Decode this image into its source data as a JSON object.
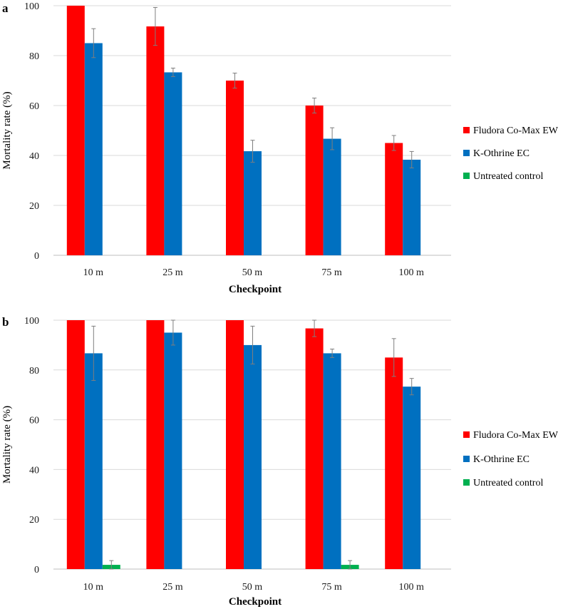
{
  "chart_data": [
    {
      "type": "bar",
      "panel_label": "a",
      "title": "",
      "xlabel": "Checkpoint",
      "ylabel": "Mortality rate (%)",
      "ylim": [
        0,
        100
      ],
      "yticks": [
        "0",
        "20",
        "40",
        "60",
        "80",
        "100"
      ],
      "categories": [
        "10 m",
        "25 m",
        "50 m",
        "75 m",
        "100 m"
      ],
      "legend_position": "right",
      "series": [
        {
          "name": "Fludora Co-Max EW",
          "color": "#ff0000",
          "values": [
            100,
            91.7,
            70,
            60,
            45
          ],
          "errors": [
            0,
            7.6,
            3,
            3,
            3
          ]
        },
        {
          "name": "K-Othrine EC",
          "color": "#0070c0",
          "values": [
            85,
            73.3,
            41.7,
            46.7,
            38.3
          ],
          "errors": [
            5.8,
            1.7,
            4.4,
            4.4,
            3.3
          ]
        },
        {
          "name": "Untreated control",
          "color": "#00b050",
          "values": [
            0,
            0,
            0,
            0,
            0
          ],
          "errors": [
            0,
            0,
            0,
            0,
            0
          ]
        }
      ]
    },
    {
      "type": "bar",
      "panel_label": "b",
      "title": "",
      "xlabel": "Checkpoint",
      "ylabel": "Mortality rate (%)",
      "ylim": [
        0,
        100
      ],
      "yticks": [
        "0",
        "20",
        "40",
        "60",
        "80",
        "100"
      ],
      "categories": [
        "10 m",
        "25 m",
        "50 m",
        "75 m",
        "100 m"
      ],
      "legend_position": "right",
      "series": [
        {
          "name": "Fludora Co-Max EW",
          "color": "#ff0000",
          "values": [
            100,
            100,
            100,
            96.7,
            85
          ],
          "errors": [
            0,
            0,
            0,
            3.3,
            7.6
          ]
        },
        {
          "name": "K-Othrine EC",
          "color": "#0070c0",
          "values": [
            86.7,
            95,
            90,
            86.7,
            73.3
          ],
          "errors": [
            10.9,
            5,
            7.6,
            1.7,
            3.3
          ]
        },
        {
          "name": "Untreated control",
          "color": "#00b050",
          "values": [
            1.7,
            0,
            0,
            1.7,
            0
          ],
          "errors": [
            1.7,
            0,
            0,
            1.7,
            0
          ]
        }
      ]
    }
  ]
}
